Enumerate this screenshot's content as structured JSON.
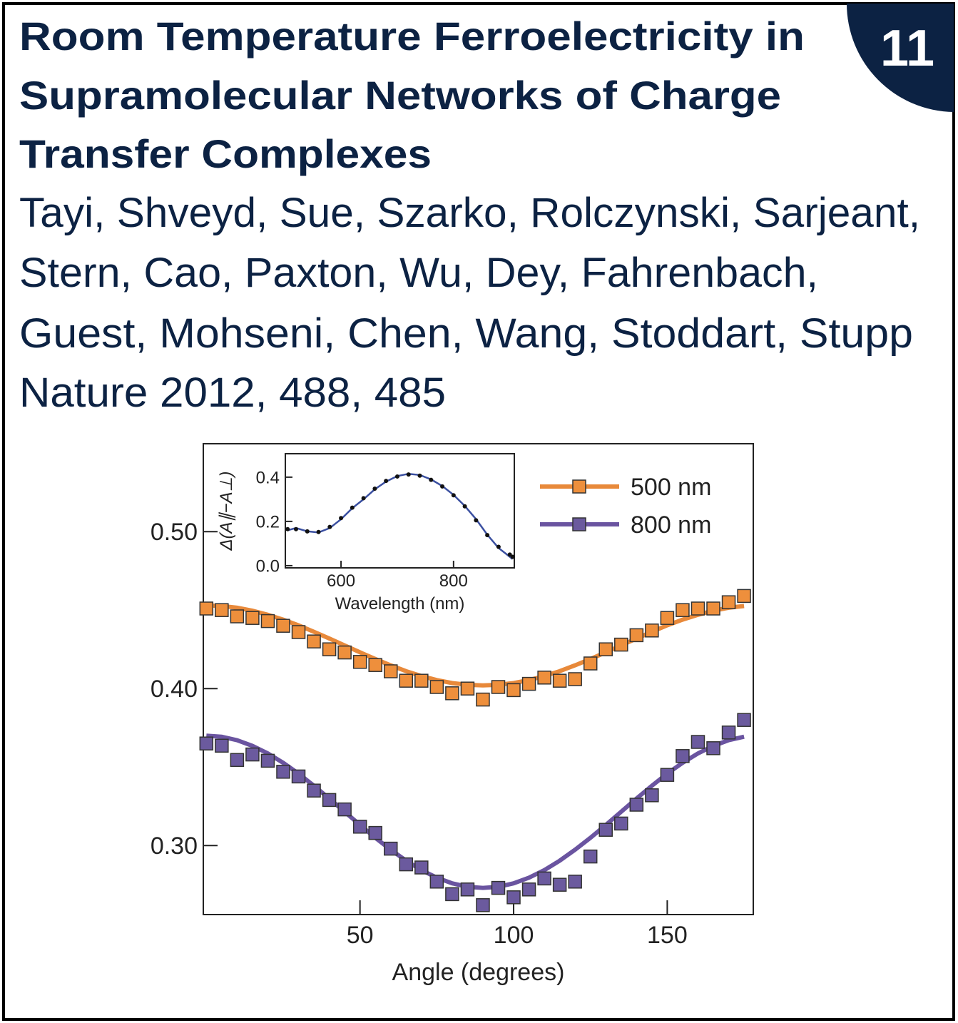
{
  "badge": "11",
  "title": [
    "Room Temperature Ferroelectricity in",
    "Supramolecular Networks of Charge",
    "Transfer Complexes"
  ],
  "authors": [
    "Tayi, Shveyd, Sue, Szarko, Rolczynski, Sarjeant,",
    "Stern, Cao, Paxton, Wu, Dey, Fahrenbach,",
    "Guest, Mohseni, Chen, Wang, Stoddart, Stupp"
  ],
  "citation": "Nature 2012, 488, 485",
  "chart_data": [
    {
      "type": "scatter",
      "xlabel": "Angle (degrees)",
      "legend": "upper right",
      "xlim": [
        -1,
        178
      ],
      "ylim": [
        0.256,
        0.556
      ],
      "xticks": [
        50,
        100,
        150
      ],
      "yticks": [
        {
          "value": 0.3,
          "label": "0.30"
        },
        {
          "value": 0.4,
          "label": "0.40"
        },
        {
          "value": 0.5,
          "label": "0.50"
        }
      ],
      "x": [
        0,
        5,
        10,
        15,
        20,
        25,
        30,
        35,
        40,
        45,
        50,
        55,
        60,
        65,
        70,
        75,
        80,
        85,
        90,
        95,
        100,
        105,
        110,
        115,
        120,
        125,
        130,
        135,
        140,
        145,
        150,
        155,
        160,
        165,
        170,
        175
      ],
      "series": [
        {
          "name": "500 nm",
          "color": "#e8893a",
          "marker_color": "#ee8f3c",
          "values": [
            0.451,
            0.45,
            0.446,
            0.445,
            0.443,
            0.44,
            0.436,
            0.43,
            0.425,
            0.423,
            0.417,
            0.415,
            0.411,
            0.405,
            0.405,
            0.401,
            0.397,
            0.4,
            0.393,
            0.401,
            0.399,
            0.403,
            0.407,
            0.405,
            0.406,
            0.416,
            0.425,
            0.428,
            0.434,
            0.437,
            0.445,
            0.45,
            0.451,
            0.451,
            0.455,
            0.459
          ],
          "fit": [
            0.453,
            0.4526,
            0.4515,
            0.4496,
            0.447,
            0.4439,
            0.4403,
            0.4362,
            0.4319,
            0.4275,
            0.4231,
            0.4188,
            0.4148,
            0.4111,
            0.408,
            0.4054,
            0.4035,
            0.4024,
            0.402,
            0.4024,
            0.4035,
            0.4054,
            0.408,
            0.4111,
            0.4148,
            0.4188,
            0.4231,
            0.4275,
            0.4319,
            0.4362,
            0.4403,
            0.4439,
            0.447,
            0.4496,
            0.4515,
            0.4526
          ]
        },
        {
          "name": "800 nm",
          "color": "#6a54a0",
          "marker_color": "#6b5a9e",
          "values": [
            0.365,
            0.3636,
            0.3545,
            0.358,
            0.354,
            0.347,
            0.344,
            0.335,
            0.329,
            0.323,
            0.312,
            0.308,
            0.298,
            0.288,
            0.286,
            0.277,
            0.269,
            0.272,
            0.262,
            0.273,
            0.267,
            0.272,
            0.279,
            0.275,
            0.277,
            0.293,
            0.31,
            0.314,
            0.326,
            0.332,
            0.345,
            0.357,
            0.366,
            0.362,
            0.372,
            0.38
          ],
          "fit": [
            0.37,
            0.3693,
            0.3671,
            0.3635,
            0.3587,
            0.3527,
            0.3458,
            0.3381,
            0.3299,
            0.3215,
            0.3131,
            0.3049,
            0.2973,
            0.2903,
            0.2843,
            0.2795,
            0.2759,
            0.2737,
            0.273,
            0.2737,
            0.2759,
            0.2795,
            0.2843,
            0.2903,
            0.2973,
            0.3049,
            0.3131,
            0.3215,
            0.3299,
            0.3381,
            0.3458,
            0.3527,
            0.3587,
            0.3635,
            0.3671,
            0.3693
          ]
        }
      ]
    },
    {
      "type": "line",
      "xlabel": "Wavelength (nm)",
      "ylabel": "Δ(A∥−A⊥)",
      "xlim": [
        501,
        908
      ],
      "ylim": [
        -0.01,
        0.506
      ],
      "xticks": [
        600,
        800
      ],
      "yticks": [
        {
          "value": 0,
          "label": "0.0"
        },
        0.2,
        0.4
      ],
      "x": [
        505,
        520,
        540,
        560,
        580,
        600,
        620,
        640,
        660,
        680,
        700,
        720,
        740,
        760,
        780,
        800,
        820,
        840,
        860,
        880,
        900,
        905
      ],
      "series": [
        {
          "color": "#3a4fa0",
          "marker": "none",
          "values": [
            0.16,
            0.17,
            0.155,
            0.15,
            0.17,
            0.21,
            0.26,
            0.3,
            0.345,
            0.38,
            0.405,
            0.415,
            0.41,
            0.39,
            0.36,
            0.32,
            0.27,
            0.21,
            0.14,
            0.08,
            0.04,
            0.03
          ]
        },
        {
          "color": "#111111",
          "marker": "dot",
          "values": [
            0.165,
            0.165,
            0.155,
            0.152,
            0.175,
            0.215,
            0.262,
            0.305,
            0.348,
            0.383,
            0.403,
            0.412,
            0.407,
            0.388,
            0.358,
            0.318,
            0.268,
            0.205,
            0.138,
            0.085,
            0.05,
            0.04
          ]
        }
      ]
    }
  ]
}
